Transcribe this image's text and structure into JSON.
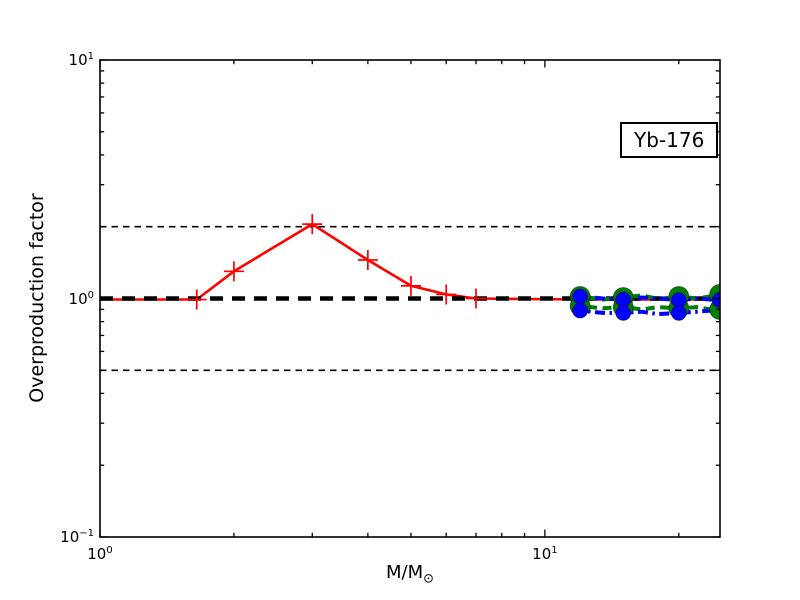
{
  "figure": {
    "title_box": "Yb-176",
    "ylabel": "Overproduction factor",
    "xlabel_main": "M/M",
    "xlabel_sub": "⊙"
  },
  "chart_data": {
    "type": "line",
    "title": "Yb-176",
    "xlabel": "M/M_sun",
    "ylabel": "Overproduction factor",
    "x_scale": "log",
    "y_scale": "log",
    "xlim": [
      1.0,
      24.75
    ],
    "ylim": [
      0.1,
      10.0
    ],
    "grid": false,
    "legend": "none",
    "x_major_ticks": [
      {
        "value": 1,
        "base": "10",
        "exp": "0"
      },
      {
        "value": 10,
        "base": "10",
        "exp": "1"
      }
    ],
    "x_minor_ticks": [
      2,
      3,
      4,
      5,
      6,
      7,
      8,
      9,
      20
    ],
    "y_major_ticks": [
      {
        "value": 0.1,
        "base": "10",
        "exp": "−1"
      },
      {
        "value": 1,
        "base": "10",
        "exp": "0"
      },
      {
        "value": 10,
        "base": "10",
        "exp": "1"
      }
    ],
    "y_minor_ticks": [
      0.2,
      0.3,
      0.4,
      0.5,
      0.6,
      0.7,
      0.8,
      0.9,
      2,
      3,
      4,
      5,
      6,
      7,
      8,
      9
    ],
    "reference_lines": [
      {
        "name": "factor-two-upper-line",
        "y": 2.0,
        "color": "#000000",
        "width": 1.6,
        "dash": "6.5 5",
        "layer": "thin"
      },
      {
        "name": "factor-two-lower-line",
        "y": 0.5,
        "color": "#000000",
        "width": 1.6,
        "dash": "6.5 5",
        "layer": "thin"
      },
      {
        "name": "unity-reference-line",
        "y": 1.0,
        "color": "#000000",
        "width": 4.5,
        "dash": "13 9",
        "layer": "thick"
      }
    ],
    "massive_star_masses": [
      12,
      15,
      20,
      25
    ],
    "series": [
      {
        "name": "agb-low-mass",
        "color": "#ff0000",
        "line_style": "solid",
        "line_width": 2.6,
        "dash": "",
        "marker": "plus",
        "marker_size": 10,
        "x": [
          1.0,
          1.65,
          2.0,
          3.0,
          4.0,
          5.0,
          6.0,
          7.0,
          9.0,
          12.0,
          16.0,
          20.0,
          24.7
        ],
        "y": [
          0.99,
          0.99,
          1.3,
          2.05,
          1.45,
          1.13,
          1.04,
          1.0,
          0.995,
          0.99,
          0.99,
          0.99,
          0.99
        ],
        "marker_x": [
          1.65,
          2.0,
          3.0,
          4.0,
          5.0,
          6.0,
          7.0
        ],
        "marker_y": [
          0.99,
          1.3,
          2.05,
          1.45,
          1.13,
          1.04,
          1.0
        ]
      },
      {
        "name": "massive-green-upper",
        "color": "#008000",
        "line_style": "dashed",
        "line_width": 4,
        "dash": "9 5.5",
        "marker": "circle",
        "marker_size": 10,
        "x": [
          11.6,
          12,
          13.5,
          15,
          16.5,
          18,
          20,
          22,
          23.5,
          24.7
        ],
        "y": [
          1.01,
          1.02,
          0.99,
          1.01,
          1.03,
          0.995,
          1.02,
          1.0,
          1.02,
          1.04
        ],
        "marker_x": [
          12,
          15,
          20,
          24.7
        ],
        "marker_y": [
          1.02,
          1.01,
          1.02,
          1.04
        ]
      },
      {
        "name": "massive-green-lower",
        "color": "#008000",
        "line_style": "dashed",
        "line_width": 4,
        "dash": "9 5.5",
        "marker": "circle",
        "marker_size": 10,
        "x": [
          11.6,
          12,
          13.5,
          15,
          16.5,
          18,
          20,
          22,
          23.5,
          24.7
        ],
        "y": [
          0.93,
          0.93,
          0.91,
          0.92,
          0.9,
          0.92,
          0.91,
          0.92,
          0.9,
          0.9
        ],
        "marker_x": [
          12,
          15,
          20,
          24.7
        ],
        "marker_y": [
          0.93,
          0.92,
          0.91,
          0.9
        ]
      },
      {
        "name": "massive-blue-upper",
        "color": "#0000ff",
        "line_style": "dashdot",
        "line_width": 4,
        "dash": "10 4.5 2.5 4.5",
        "marker": "circle",
        "marker_size": 7.5,
        "x": [
          11.6,
          12,
          13.5,
          15,
          16.5,
          18,
          20,
          22,
          23.5,
          24.7
        ],
        "y": [
          1.02,
          1.02,
          1.0,
          0.99,
          1.01,
          1.0,
          0.985,
          1.0,
          0.99,
          0.985
        ],
        "marker_x": [
          12,
          15,
          20,
          24.7
        ],
        "marker_y": [
          1.02,
          0.99,
          0.985,
          0.985
        ]
      },
      {
        "name": "massive-blue-lower",
        "color": "#0000ff",
        "line_style": "dashdot",
        "line_width": 4,
        "dash": "10 4.5 2.5 4.5",
        "marker": "circle",
        "marker_size": 7.5,
        "x": [
          11.6,
          12,
          13.5,
          15,
          16.5,
          18,
          20,
          22,
          23.5,
          24.7
        ],
        "y": [
          0.89,
          0.89,
          0.87,
          0.87,
          0.88,
          0.86,
          0.87,
          0.88,
          0.89,
          0.91
        ],
        "marker_x": [
          12,
          15,
          20
        ],
        "marker_y": [
          0.89,
          0.87,
          0.87
        ]
      }
    ],
    "annotation": {
      "text": "Yb-176",
      "box": true
    }
  }
}
